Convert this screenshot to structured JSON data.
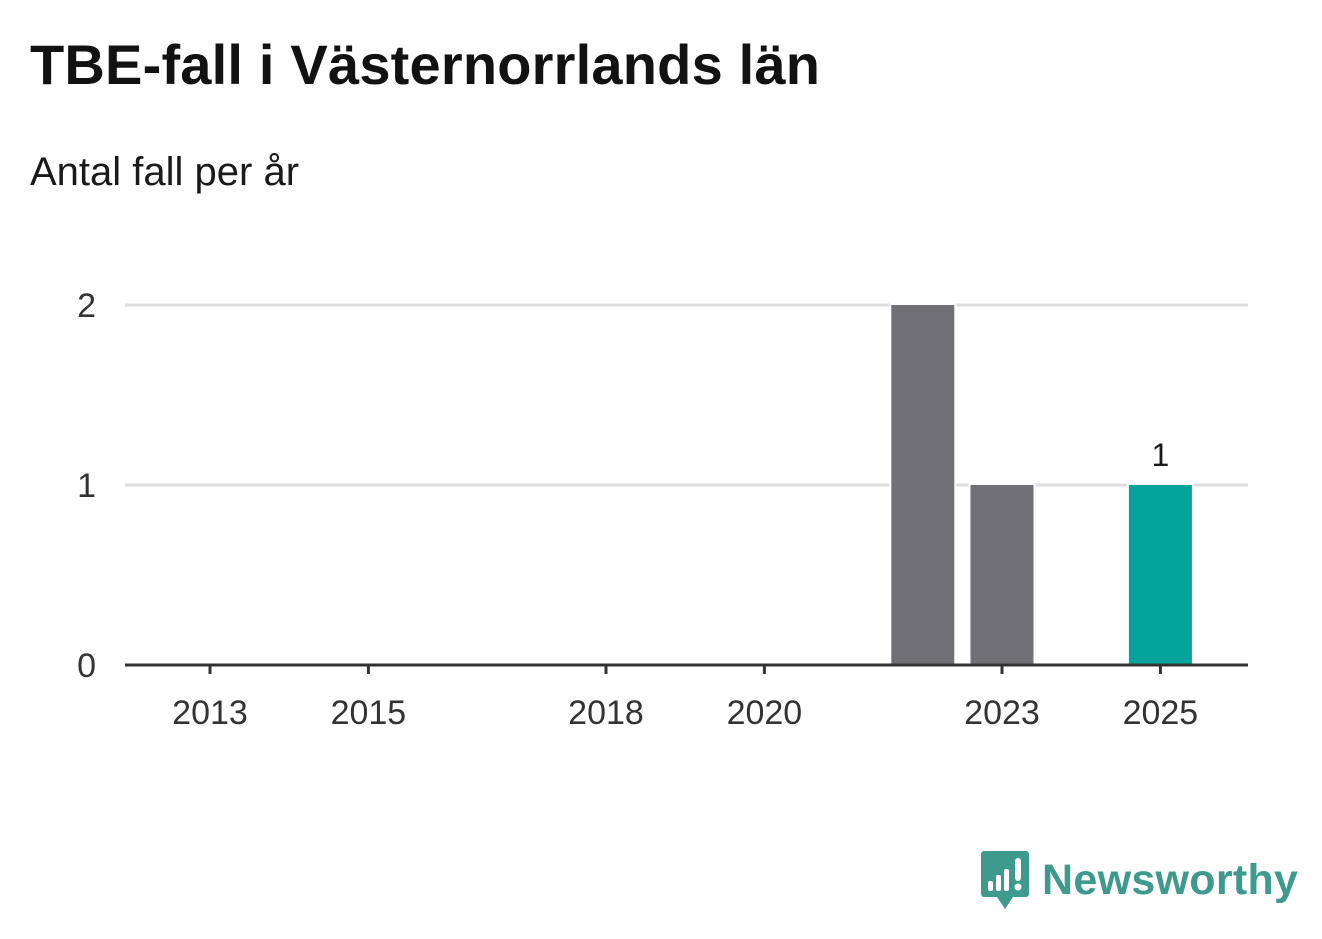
{
  "header": {
    "title": "TBE-fall i Västernorrlands län",
    "subtitle": "Antal fall per år"
  },
  "brand": {
    "name": "Newsworthy",
    "color": "#3e9a8d",
    "icon": "bar-chart-speech-bubble-icon"
  },
  "colors": {
    "bar_default": "#717077",
    "bar_highlight": "#00a49b",
    "grid": "#dedede",
    "axis": "#333333"
  },
  "chart_data": {
    "type": "bar",
    "categories": [
      "2013",
      "2014",
      "2015",
      "2016",
      "2017",
      "2018",
      "2019",
      "2020",
      "2021",
      "2022",
      "2023",
      "2024",
      "2025"
    ],
    "values": [
      0,
      0,
      0,
      0,
      0,
      0,
      0,
      0,
      0,
      2,
      1,
      0,
      1
    ],
    "x_tick_labels": [
      "2013",
      "2015",
      "2018",
      "2020",
      "2023",
      "2025"
    ],
    "y_ticks": [
      0,
      1,
      2
    ],
    "ylim": [
      0,
      2
    ],
    "highlight_category": "2025",
    "data_labels": [
      {
        "category": "2025",
        "label": "1"
      }
    ],
    "title": "TBE-fall i Västernorrlands län",
    "subtitle": "Antal fall per år",
    "grid": true,
    "legend": "none"
  }
}
